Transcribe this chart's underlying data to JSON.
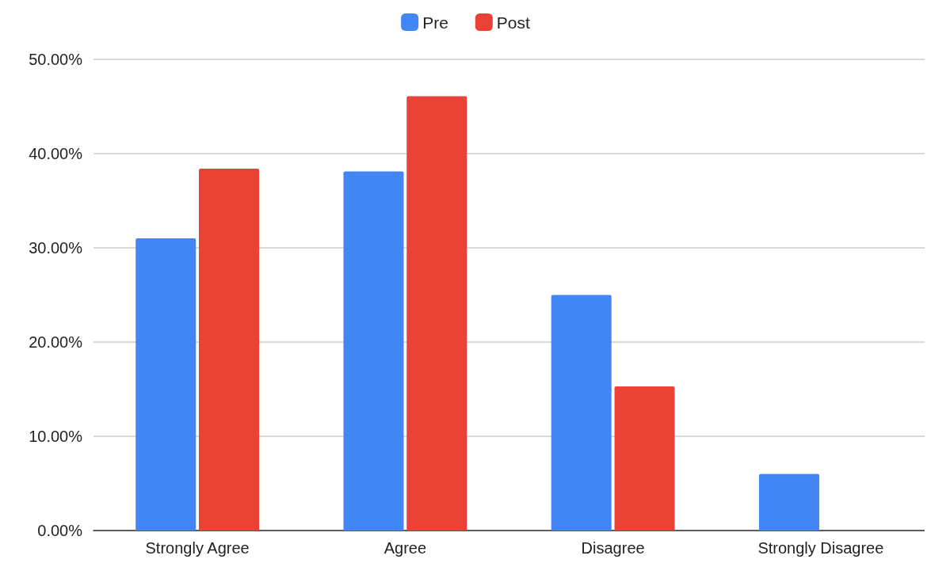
{
  "chart_data": {
    "type": "bar",
    "categories": [
      "Strongly Agree",
      "Agree",
      "Disagree",
      "Strongly Disagree"
    ],
    "series": [
      {
        "name": "Pre",
        "color": "#4285f4",
        "values": [
          31.0,
          38.1,
          25.0,
          6.0
        ]
      },
      {
        "name": "Post",
        "color": "#ea4335",
        "values": [
          38.4,
          46.1,
          15.3,
          0
        ]
      }
    ],
    "ylim": [
      0,
      50
    ],
    "yticks": [
      {
        "value": 0,
        "label": "0.00%"
      },
      {
        "value": 10,
        "label": "10.00%"
      },
      {
        "value": 20,
        "label": "20.00%"
      },
      {
        "value": 30,
        "label": "30.00%"
      },
      {
        "value": 40,
        "label": "40.00%"
      },
      {
        "value": 50,
        "label": "50.00%"
      }
    ],
    "grid": "y",
    "legend": "top"
  }
}
